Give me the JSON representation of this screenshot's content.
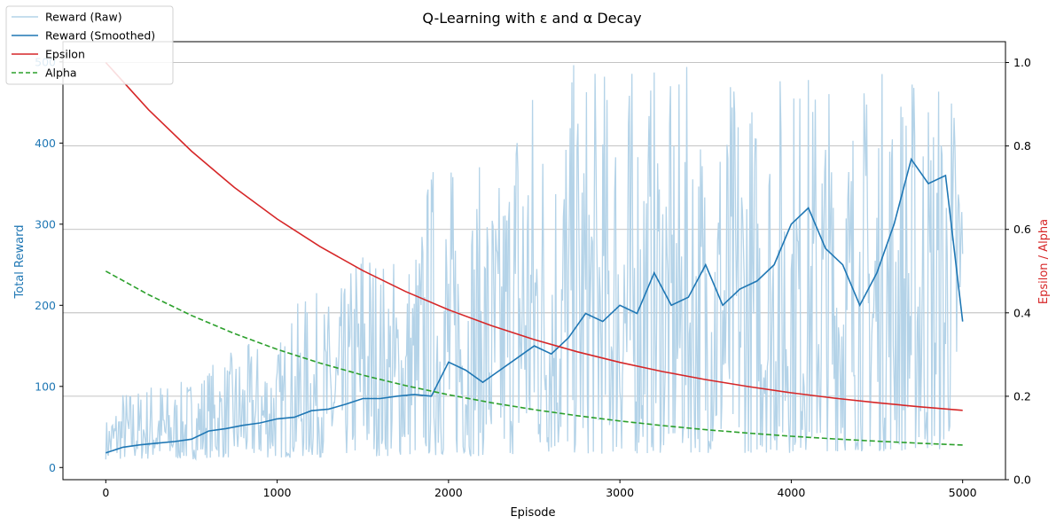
{
  "chart_data": {
    "type": "line",
    "title": "Q-Learning with ε and α Decay",
    "xlabel": "Episode",
    "ylabel_left": "Total Reward",
    "ylabel_right": "Epsilon / Alpha",
    "xlim": [
      -250,
      5250
    ],
    "ylim_left": [
      -15,
      525
    ],
    "ylim_right": [
      0,
      1.05
    ],
    "x_ticks": [
      0,
      1000,
      2000,
      3000,
      4000,
      5000
    ],
    "y_left_ticks": [
      0,
      100,
      200,
      300,
      400,
      500
    ],
    "y_right_ticks": [
      0.0,
      0.2,
      0.4,
      0.6,
      0.8,
      1.0
    ],
    "grid": "horizontal, right axis",
    "legend_position": "top-left",
    "colors": {
      "raw": "#b4d3e8",
      "smoothed": "#1f77b4",
      "epsilon": "#d62728",
      "alpha": "#2ca02c",
      "left_axis_text": "#1f77b4",
      "right_axis_text": "#d62728"
    },
    "series": [
      {
        "name": "Reward (Raw)",
        "axis": "left",
        "style": "solid",
        "x": [
          0,
          100,
          200,
          300,
          400,
          500,
          600,
          700,
          800,
          900,
          1000,
          1100,
          1200,
          1300,
          1400,
          1500,
          1600,
          1700,
          1800,
          1900,
          2000,
          2100,
          2200,
          2300,
          2400,
          2500,
          2600,
          2700,
          2800,
          2900,
          3000,
          3100,
          3200,
          3300,
          3400,
          3500,
          3600,
          3700,
          3800,
          3900,
          4000,
          4100,
          4200,
          4300,
          4400,
          4500,
          4600,
          4700,
          4800,
          4900,
          5000
        ],
        "y_min": [
          10,
          10,
          10,
          10,
          10,
          10,
          12,
          12,
          12,
          12,
          12,
          12,
          12,
          14,
          14,
          14,
          14,
          14,
          14,
          14,
          14,
          14,
          14,
          14,
          16,
          16,
          16,
          16,
          16,
          16,
          16,
          16,
          18,
          18,
          18,
          18,
          18,
          18,
          18,
          18,
          18,
          20,
          20,
          20,
          20,
          20,
          20,
          20,
          20,
          20,
          100
        ],
        "y_max": [
          60,
          100,
          100,
          116,
          100,
          115,
          130,
          140,
          150,
          160,
          155,
          200,
          220,
          210,
          230,
          318,
          265,
          270,
          280,
          390,
          390,
          350,
          380,
          360,
          500,
          500,
          420,
          500,
          500,
          500,
          500,
          500,
          500,
          470,
          500,
          430,
          480,
          500,
          460,
          500,
          500,
          500,
          500,
          450,
          480,
          500,
          500,
          500,
          500,
          500,
          480
        ]
      },
      {
        "name": "Reward (Smoothed)",
        "axis": "left",
        "style": "solid",
        "x": [
          0,
          100,
          200,
          300,
          400,
          500,
          600,
          700,
          800,
          900,
          1000,
          1100,
          1200,
          1300,
          1400,
          1500,
          1600,
          1700,
          1800,
          1900,
          2000,
          2100,
          2200,
          2300,
          2400,
          2500,
          2600,
          2700,
          2800,
          2900,
          3000,
          3100,
          3200,
          3300,
          3400,
          3500,
          3600,
          3700,
          3800,
          3900,
          4000,
          4100,
          4200,
          4300,
          4400,
          4500,
          4600,
          4700,
          4800,
          4900,
          5000
        ],
        "y": [
          18,
          25,
          28,
          30,
          32,
          35,
          45,
          48,
          52,
          55,
          60,
          62,
          70,
          72,
          78,
          85,
          85,
          88,
          90,
          88,
          130,
          120,
          105,
          120,
          135,
          150,
          140,
          160,
          190,
          180,
          200,
          190,
          240,
          200,
          210,
          250,
          200,
          220,
          230,
          250,
          300,
          320,
          270,
          250,
          200,
          240,
          300,
          380,
          350,
          360,
          180
        ]
      },
      {
        "name": "Epsilon",
        "axis": "right",
        "style": "solid",
        "x": [
          0,
          250,
          500,
          750,
          1000,
          1250,
          1500,
          1750,
          2000,
          2250,
          2500,
          2750,
          3000,
          3250,
          3500,
          3750,
          4000,
          4250,
          4500,
          4750,
          5000
        ],
        "y": [
          1.0,
          0.8867,
          0.7874,
          0.7006,
          0.6249,
          0.5589,
          0.5013,
          0.4511,
          0.4073,
          0.3691,
          0.3358,
          0.3067,
          0.2813,
          0.2592,
          0.2399,
          0.2231,
          0.2084,
          0.1956,
          0.1844,
          0.1747,
          0.1662
        ]
      },
      {
        "name": "Alpha",
        "axis": "right",
        "style": "dashed",
        "x": [
          0,
          250,
          500,
          750,
          1000,
          1250,
          1500,
          1750,
          2000,
          2250,
          2500,
          2750,
          3000,
          3250,
          3500,
          3750,
          4000,
          4250,
          4500,
          4750,
          5000
        ],
        "y": [
          0.5,
          0.4433,
          0.3937,
          0.3503,
          0.3124,
          0.2794,
          0.2507,
          0.2255,
          0.2036,
          0.1845,
          0.1679,
          0.1534,
          0.1407,
          0.1296,
          0.1199,
          0.1115,
          0.1042,
          0.0978,
          0.0922,
          0.0873,
          0.0831
        ]
      }
    ]
  }
}
